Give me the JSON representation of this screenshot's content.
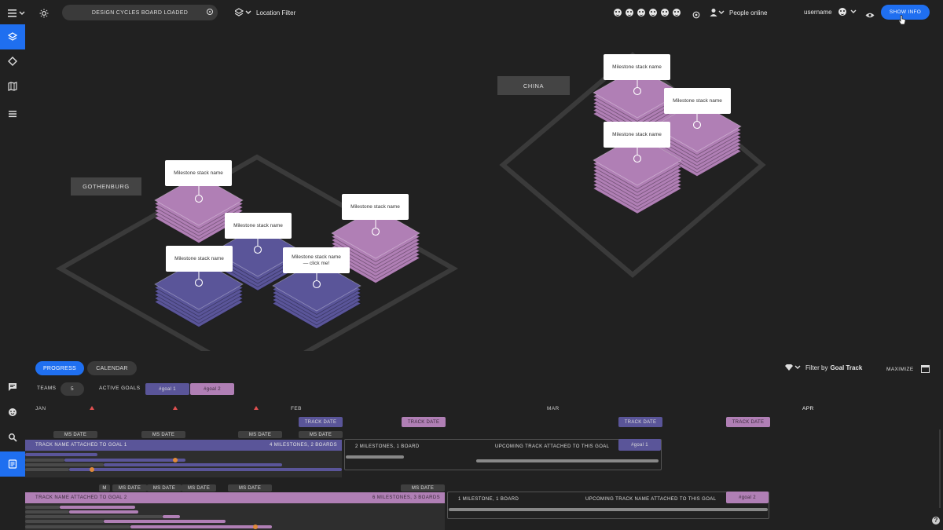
{
  "topbar": {
    "status": "DESIGN CYCLES BOARD LOADED",
    "location_filter": "Location Filter",
    "people_online": "People online",
    "username": "username",
    "show_info": "SHOW INFO"
  },
  "map": {
    "cities": [
      "GOTHENBURG",
      "CHINA"
    ],
    "labels": {
      "g1": "Milestone stack name",
      "g2": "Milestone stack name",
      "g3": "Milestone stack name",
      "g4": "Milestone stack name",
      "g5": "Milestone stack name — click me!",
      "c1": "Milestone stack name",
      "c2": "Milestone stack name",
      "c3": "Milestone stack name"
    }
  },
  "panel": {
    "tabs": [
      "PROGRESS",
      "CALENDAR"
    ],
    "filter_prefix": "Filter by",
    "filter_value": "Goal Track",
    "maximize": "MAXIMIZE",
    "teams_label": "TEAMS",
    "teams_count": "5",
    "active_goals_label": "ACTIVE GOALS",
    "goals": [
      "#goal 1",
      "#goal 2"
    ],
    "months": [
      "JAN",
      "FEB",
      "MAR",
      "APR"
    ],
    "track_date": "TRACK DATE",
    "ms_date": "MS DATE",
    "m_label": "M",
    "track1": {
      "name": "TRACK NAME ATTACHED TO GOAL 1",
      "summary": "4 MILESTONES, 2 BOARDS",
      "upcoming_summary": "2 MILESTONES, 1 BOARD",
      "upcoming_name": "UPCOMING TRACK ATTACHED TO THIS GOAL",
      "goal_tag": "#goal 1"
    },
    "track2": {
      "name": "TRACK NAME ATTACHED TO GOAL 2",
      "summary": "6 MILESTONES, 3 BOARDS",
      "upcoming_summary": "1 MILESTONE, 1 BOARD",
      "upcoming_name": "UPCOMING TRACK NAME ATTACHED TO THIS GOAL",
      "goal_tag": "#goal 2"
    }
  },
  "colors": {
    "accent": "#1f6ff0",
    "goal1": "#5a5599",
    "goal2": "#b07fb5"
  }
}
